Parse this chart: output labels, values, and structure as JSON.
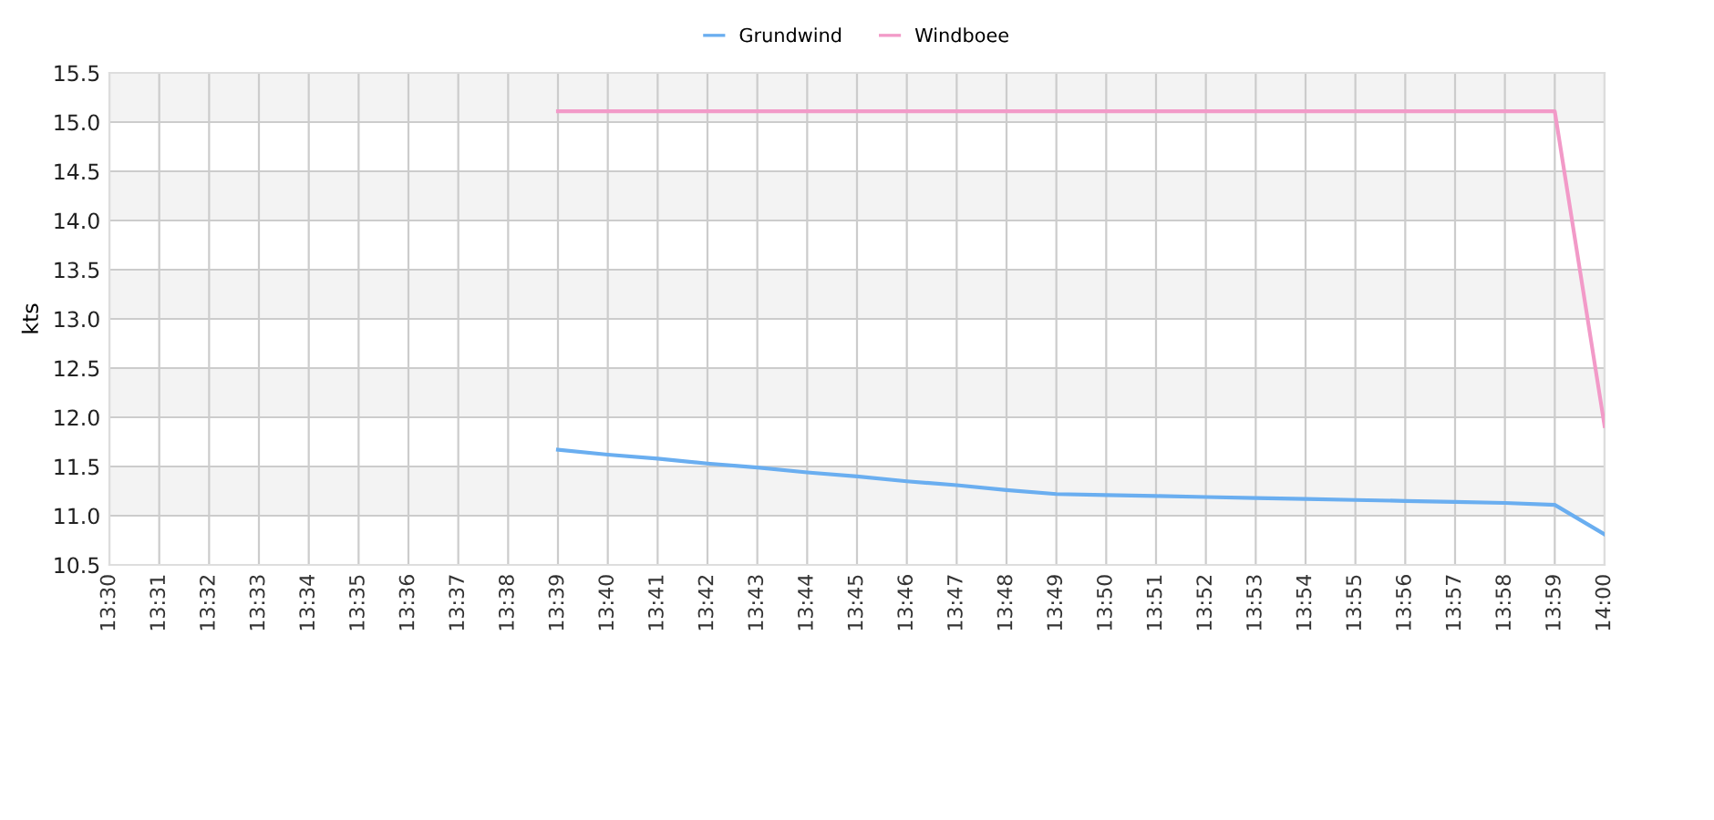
{
  "chart_data": {
    "type": "line",
    "ylabel": "kts",
    "categories": [
      "13:30",
      "13:31",
      "13:32",
      "13:33",
      "13:34",
      "13:35",
      "13:36",
      "13:37",
      "13:38",
      "13:39",
      "13:40",
      "13:41",
      "13:42",
      "13:43",
      "13:44",
      "13:45",
      "13:46",
      "13:47",
      "13:48",
      "13:49",
      "13:50",
      "13:51",
      "13:52",
      "13:53",
      "13:54",
      "13:55",
      "13:56",
      "13:57",
      "13:58",
      "13:59",
      "14:00"
    ],
    "series": [
      {
        "name": "Grundwind",
        "color": "#6aaef0",
        "values": [
          null,
          null,
          null,
          null,
          null,
          null,
          null,
          null,
          null,
          11.67,
          11.62,
          11.58,
          11.53,
          11.49,
          11.44,
          11.4,
          11.35,
          11.31,
          11.26,
          11.22,
          11.21,
          11.2,
          11.19,
          11.18,
          11.17,
          11.16,
          11.15,
          11.14,
          11.13,
          11.11,
          10.81
        ]
      },
      {
        "name": "Windboee",
        "color": "#f29ac8",
        "values": [
          null,
          null,
          null,
          null,
          null,
          null,
          null,
          null,
          null,
          15.11,
          15.11,
          15.11,
          15.11,
          15.11,
          15.11,
          15.11,
          15.11,
          15.11,
          15.11,
          15.11,
          15.11,
          15.11,
          15.11,
          15.11,
          15.11,
          15.11,
          15.11,
          15.11,
          15.11,
          15.11,
          11.91
        ]
      }
    ],
    "ylim": [
      10.5,
      15.5
    ],
    "yticks": [
      10.5,
      {
        "value": 11,
        "label": "11.0"
      },
      11.5,
      {
        "value": 12,
        "label": "12.0"
      },
      12.5,
      {
        "value": 13,
        "label": "13.0"
      },
      13.5,
      {
        "value": 14,
        "label": "14.0"
      },
      14.5,
      {
        "value": 15,
        "label": "15.0"
      },
      15.5
    ],
    "bands": [
      {
        "axis": "y",
        "from": 11,
        "to": 11.5,
        "color": "#f3f3f3"
      },
      {
        "axis": "y",
        "from": 12,
        "to": 12.5,
        "color": "#f3f3f3"
      },
      {
        "axis": "y",
        "from": 13,
        "to": 13.5,
        "color": "#f3f3f3"
      },
      {
        "axis": "y",
        "from": 14,
        "to": 14.5,
        "color": "#f3f3f3"
      },
      {
        "axis": "y",
        "from": 15,
        "to": 15.5,
        "color": "#f3f3f3"
      }
    ],
    "grid": true,
    "legend": "top",
    "marker": "none",
    "line_style": "solid"
  }
}
